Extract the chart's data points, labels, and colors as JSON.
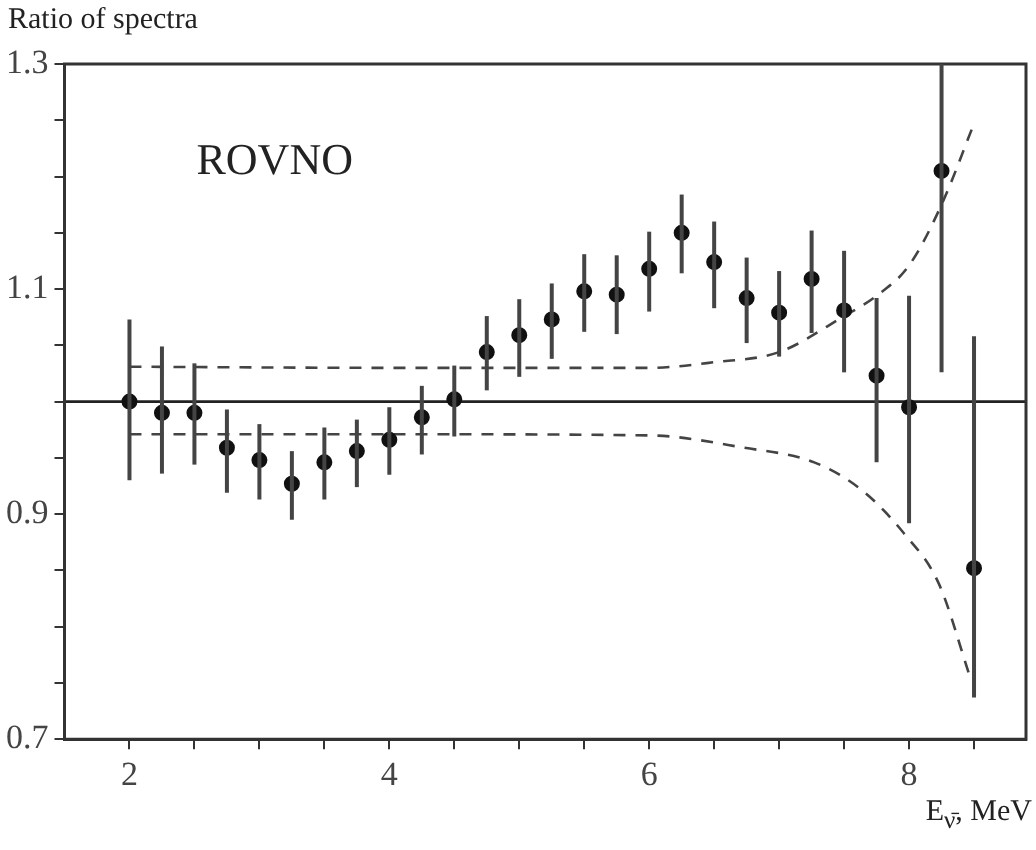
{
  "chart_data": {
    "type": "scatter",
    "ylabel": "Ratio of spectra",
    "xlabel": "E$_{ν̄}$, MeV",
    "annotations": [
      "ROVNO"
    ],
    "xlim": [
      1.5,
      8.9
    ],
    "xticks": [
      2,
      {
        "value": 2.5,
        "label": null
      },
      {
        "value": 3,
        "label": null
      },
      {
        "value": 3.5,
        "label": null
      },
      4,
      {
        "value": 4.5,
        "label": null
      },
      {
        "value": 5,
        "label": null
      },
      {
        "value": 5.5,
        "label": null
      },
      6,
      {
        "value": 6.5,
        "label": null
      },
      {
        "value": 7,
        "label": null
      },
      {
        "value": 7.5,
        "label": null
      },
      8,
      {
        "value": 8.5,
        "label": null
      }
    ],
    "ylim": [
      0.7,
      1.3
    ],
    "yticks": [
      0.7,
      {
        "value": 0.75,
        "label": null
      },
      {
        "value": 0.8,
        "label": null
      },
      {
        "value": 0.85,
        "label": null
      },
      0.9,
      {
        "value": 0.95,
        "label": null
      },
      {
        "value": 1.0,
        "label": null
      },
      {
        "value": 1.05,
        "label": null
      },
      1.1,
      {
        "value": 1.15,
        "label": null
      },
      {
        "value": 1.2,
        "label": null
      },
      {
        "value": 1.25,
        "label": null
      },
      1.3
    ],
    "grid": false,
    "legend": false,
    "ref_lines": [
      {
        "axis": "y",
        "value": 1.0,
        "color": "#222222",
        "line_style": "solid"
      }
    ],
    "series": [
      {
        "type": "scatter",
        "marker": "circle",
        "color": "#111111",
        "x": [
          2,
          2.25,
          2.5,
          2.75,
          3,
          3.25,
          3.5,
          3.75,
          4,
          4.25,
          4.5,
          4.75,
          5,
          5.25,
          5.5,
          5.75,
          6,
          6.25,
          6.5,
          6.75,
          7,
          7.25,
          7.5,
          7.75,
          8,
          8.25,
          8.5
        ],
        "values": [
          1.0,
          0.99,
          0.99,
          0.959,
          0.948,
          0.927,
          0.946,
          0.956,
          0.966,
          0.986,
          1.002,
          1.044,
          1.059,
          1.073,
          1.098,
          1.095,
          1.118,
          1.15,
          1.124,
          1.092,
          1.079,
          1.109,
          1.081,
          1.023,
          0.995,
          1.205,
          0.852
        ],
        "errors": [
          [
            0.93,
            1.073
          ],
          [
            0.936,
            1.049
          ],
          [
            0.944,
            1.034
          ],
          [
            0.919,
            0.993
          ],
          [
            0.913,
            0.98
          ],
          [
            0.895,
            0.956
          ],
          [
            0.913,
            0.977
          ],
          [
            0.924,
            0.984
          ],
          [
            0.935,
            0.995
          ],
          [
            0.953,
            1.014
          ],
          [
            0.969,
            1.032
          ],
          [
            1.01,
            1.076
          ],
          [
            1.022,
            1.091
          ],
          [
            1.038,
            1.105
          ],
          [
            1.062,
            1.131
          ],
          [
            1.06,
            1.13
          ],
          [
            1.08,
            1.151
          ],
          [
            1.114,
            1.184
          ],
          [
            1.083,
            1.16
          ],
          [
            1.052,
            1.128
          ],
          [
            1.04,
            1.116
          ],
          [
            1.061,
            1.152
          ],
          [
            1.026,
            1.134
          ],
          [
            0.946,
            1.092
          ],
          [
            0.892,
            1.094
          ],
          [
            1.026,
            1.3
          ],
          [
            0.737,
            1.058
          ]
        ]
      },
      {
        "type": "line",
        "marker": "none",
        "line_style": "dashed",
        "color": "#444444",
        "x": [
          2,
          4,
          6,
          6.5,
          7,
          7.5,
          7.75,
          8,
          8.25,
          8.5
        ],
        "values": [
          1.031,
          1.03,
          1.03,
          1.035,
          1.044,
          1.076,
          1.094,
          1.121,
          1.175,
          1.247
        ]
      },
      {
        "type": "line",
        "marker": "none",
        "line_style": "dashed",
        "color": "#444444",
        "x": [
          2,
          4,
          6,
          6.73,
          7.27,
          7.64,
          7.96,
          8.23,
          8.47
        ],
        "values": [
          0.971,
          0.971,
          0.97,
          0.959,
          0.946,
          0.921,
          0.883,
          0.838,
          0.755
        ]
      }
    ]
  }
}
